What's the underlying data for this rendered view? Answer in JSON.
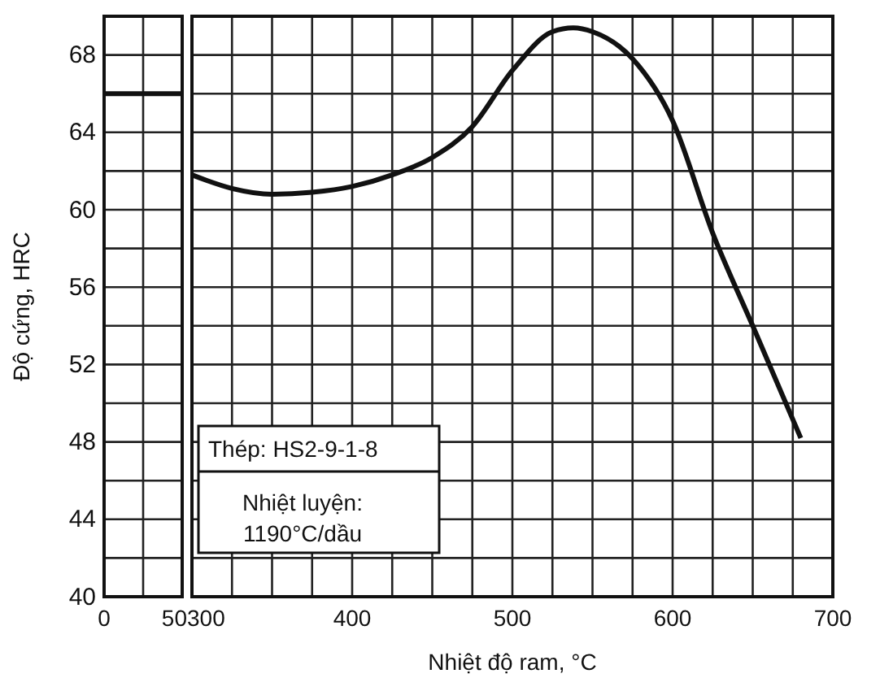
{
  "chart_data": [
    {
      "type": "line",
      "ylabel": "Độ cứng, HRC",
      "x": [
        0,
        50
      ],
      "series": [
        {
          "color": "#111111",
          "values": [
            66,
            66
          ]
        }
      ],
      "xlim": [
        0,
        50
      ],
      "xticks": [
        0,
        {
          "value": 25,
          "label": null
        },
        50
      ],
      "ylim": [
        40,
        70
      ],
      "yticks": [
        40,
        {
          "value": 42,
          "label": null
        },
        44,
        {
          "value": 46,
          "label": null
        },
        48,
        {
          "value": 50,
          "label": null
        },
        52,
        {
          "value": 54,
          "label": null
        },
        56,
        {
          "value": 58,
          "label": null
        },
        60,
        {
          "value": 62,
          "label": null
        },
        64,
        {
          "value": 66,
          "label": null
        },
        68
      ],
      "grid": true,
      "marker": "none",
      "line_style": "solid"
    },
    {
      "type": "line",
      "xlabel": "Nhiệt độ ram, °C",
      "x": [
        300,
        325,
        350,
        375,
        400,
        425,
        450,
        475,
        500,
        525,
        538,
        550,
        575,
        600,
        625,
        650,
        680
      ],
      "series": [
        {
          "color": "#111111",
          "values": [
            61.8,
            61.1,
            60.8,
            60.9,
            61.2,
            61.8,
            62.7,
            64.3,
            67.2,
            69.2,
            69.4,
            69.2,
            67.8,
            64.6,
            58.8,
            54.0,
            48.2
          ]
        }
      ],
      "xlim": [
        300,
        700
      ],
      "xticks": [
        300,
        {
          "value": 325,
          "label": null
        },
        {
          "value": 350,
          "label": null
        },
        {
          "value": 375,
          "label": null
        },
        400,
        {
          "value": 425,
          "label": null
        },
        {
          "value": 450,
          "label": null
        },
        {
          "value": 475,
          "label": null
        },
        500,
        {
          "value": 525,
          "label": null
        },
        {
          "value": 550,
          "label": null
        },
        {
          "value": 575,
          "label": null
        },
        600,
        {
          "value": 625,
          "label": null
        },
        {
          "value": 650,
          "label": null
        },
        {
          "value": 675,
          "label": null
        },
        700
      ],
      "ylim": [
        40,
        70
      ],
      "yticks": [
        40,
        42,
        44,
        46,
        48,
        50,
        52,
        54,
        56,
        58,
        60,
        62,
        64,
        66,
        68
      ],
      "tick_labels": "x",
      "grid": true,
      "marker": "none",
      "line_style": "solid",
      "annotations": [
        "Thép: HS2-9-1-8",
        "Nhiệt luyện:\n1190°C/dầu"
      ]
    }
  ]
}
